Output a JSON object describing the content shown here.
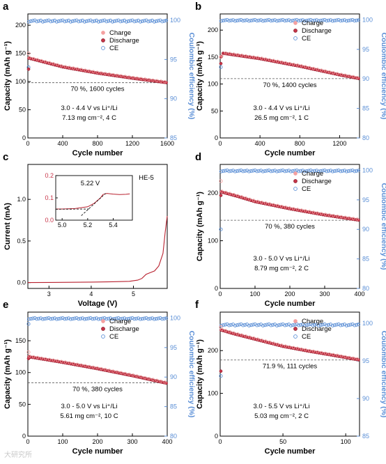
{
  "colors": {
    "charge": "#f4a0a0",
    "discharge": "#c8364a",
    "ce": "#5b8fd6",
    "cv_curve": "#b8202e",
    "axis": "#000000",
    "inset_axis": "#c8364a"
  },
  "watermark": "大研究所",
  "chart_data": [
    {
      "panel": "a",
      "type": "scatter",
      "xlabel": "Cycle number",
      "ylabel": "Capacity (mAh g⁻¹)",
      "ylabel_right": "Coulombic efficiency (%)",
      "xlim": [
        0,
        1600
      ],
      "ylim": [
        0,
        220
      ],
      "ylim_right": [
        85,
        100.8
      ],
      "xticks": [
        0,
        400,
        800,
        1200,
        1600
      ],
      "yticks": [
        0,
        50,
        100,
        150,
        200
      ],
      "yticks_right": [
        85,
        90,
        95,
        100
      ],
      "legend": [
        "Charge",
        "Discharge",
        "CE"
      ],
      "legend_position": "right-middle",
      "retention_label": "70 %, 1600 cycles",
      "retention_y": 98,
      "conditions": [
        "3.0 - 4.4 V vs Li⁺/Li",
        "7.13 mg cm⁻², 4 C"
      ],
      "charge_first": 150,
      "discharge_first": 122,
      "ce_first": 94,
      "discharge_curve": [
        [
          0,
          142
        ],
        [
          400,
          126
        ],
        [
          800,
          115
        ],
        [
          1200,
          106
        ],
        [
          1600,
          98
        ]
      ],
      "ce_value": 99.9
    },
    {
      "panel": "b",
      "type": "scatter",
      "xlabel": "Cycle number",
      "ylabel": "Capacity (mAh g⁻¹)",
      "ylabel_right": "Coulombic efficiency (%)",
      "xlim": [
        0,
        1400
      ],
      "ylim": [
        0,
        230
      ],
      "ylim_right": [
        80,
        101
      ],
      "xticks": [
        0,
        400,
        800,
        1200
      ],
      "yticks": [
        0,
        50,
        100,
        150,
        200
      ],
      "yticks_right": [
        80,
        85,
        90,
        95,
        100
      ],
      "legend": [
        "Charge",
        "Discharge",
        "CE"
      ],
      "legend_position": "right-top",
      "retention_label": "70 %, 1400 cycles",
      "retention_y": 110,
      "conditions": [
        "3.0 - 4.4 V vs Li⁺/Li",
        "26.5 mg cm⁻², 1 C"
      ],
      "charge_first": 150,
      "discharge_first": 138,
      "ce_first": 92,
      "discharge_curve": [
        [
          0,
          148
        ],
        [
          30,
          157
        ],
        [
          400,
          147
        ],
        [
          800,
          133
        ],
        [
          1200,
          117
        ],
        [
          1400,
          110
        ]
      ],
      "ce_value": 99.9
    },
    {
      "panel": "c",
      "type": "line",
      "xlabel": "Voltage (V)",
      "ylabel": "Current (mA)",
      "xlim": [
        2.5,
        5.8
      ],
      "ylim": [
        -0.07,
        1.42
      ],
      "xticks": [
        3,
        4,
        5
      ],
      "yticks": [
        0.0,
        0.5,
        1.0
      ],
      "label": "HE-5",
      "curve": [
        [
          2.5,
          0.0
        ],
        [
          3.0,
          0.002
        ],
        [
          3.5,
          0.004
        ],
        [
          4.0,
          0.006
        ],
        [
          4.5,
          0.01
        ],
        [
          4.9,
          0.015
        ],
        [
          5.1,
          0.03
        ],
        [
          5.2,
          0.05
        ],
        [
          5.3,
          0.1
        ],
        [
          5.4,
          0.12
        ],
        [
          5.5,
          0.14
        ],
        [
          5.6,
          0.2
        ],
        [
          5.7,
          0.35
        ],
        [
          5.75,
          0.6
        ],
        [
          5.8,
          0.8
        ]
      ],
      "inset": {
        "xlim": [
          4.95,
          5.55
        ],
        "ylim": [
          0.0,
          0.2
        ],
        "xticks": [
          5.0,
          5.2,
          5.4
        ],
        "yticks": [
          0.0,
          0.1,
          0.2
        ],
        "onset_label": "5.22 V",
        "curve": [
          [
            4.95,
            0.05
          ],
          [
            5.0,
            0.05
          ],
          [
            5.1,
            0.052
          ],
          [
            5.2,
            0.06
          ],
          [
            5.25,
            0.075
          ],
          [
            5.3,
            0.1
          ],
          [
            5.32,
            0.115
          ],
          [
            5.35,
            0.12
          ],
          [
            5.4,
            0.117
          ],
          [
            5.45,
            0.115
          ],
          [
            5.5,
            0.116
          ],
          [
            5.53,
            0.118
          ]
        ],
        "tangent_base": [
          [
            4.95,
            0.049
          ],
          [
            5.22,
            0.05
          ]
        ],
        "tangent_rise": [
          [
            5.15,
            0.02
          ],
          [
            5.34,
            0.12
          ]
        ]
      }
    },
    {
      "panel": "d",
      "type": "scatter",
      "xlabel": "Cycle number",
      "ylabel": "Capacity (mAh g⁻¹)",
      "ylabel_right": "Coulombic efficiency (%)",
      "xlim": [
        0,
        400
      ],
      "ylim": [
        0,
        260
      ],
      "ylim_right": [
        80,
        101
      ],
      "xticks": [
        0,
        100,
        200,
        300,
        400
      ],
      "yticks": [
        0,
        100,
        200
      ],
      "yticks_right": [
        80,
        85,
        90,
        95,
        100
      ],
      "legend": [
        "Charge",
        "Discharge",
        "CE"
      ],
      "legend_position": "right-top",
      "retention_label": "70 %, 380 cycles",
      "retention_y": 143,
      "conditions": [
        "3.0 - 5.0 V vs Li⁺/Li",
        "8.79 mg cm⁻², 2 C"
      ],
      "charge_first": 225,
      "discharge_first": 195,
      "ce_first": 90,
      "discharge_curve": [
        [
          0,
          203
        ],
        [
          50,
          193
        ],
        [
          100,
          182
        ],
        [
          200,
          167
        ],
        [
          300,
          154
        ],
        [
          400,
          143
        ]
      ],
      "ce_value": 99.9
    },
    {
      "panel": "e",
      "type": "scatter",
      "xlabel": "Cycle number",
      "ylabel": "Capacity (mAh g⁻¹)",
      "ylabel_right": "Coulombic efficiency (%)",
      "xlim": [
        0,
        400
      ],
      "ylim": [
        0,
        195
      ],
      "ylim_right": [
        80,
        101
      ],
      "xticks": [
        0,
        100,
        200,
        300,
        400
      ],
      "yticks": [
        0,
        50,
        100,
        150
      ],
      "yticks_right": [
        80,
        85,
        90,
        95,
        100
      ],
      "legend": [
        "Charge",
        "Discharge",
        "CE"
      ],
      "legend_position": "right-top",
      "retention_label": "70 %, 380 cycles",
      "retention_y": 84,
      "conditions": [
        "3.0 - 5.0 V vs Li⁺/Li",
        "5.61 mg cm⁻², 10 C"
      ],
      "charge_first": 132,
      "discharge_first": 122,
      "ce_first": 99,
      "discharge_curve": [
        [
          0,
          125
        ],
        [
          100,
          116
        ],
        [
          200,
          106
        ],
        [
          300,
          95
        ],
        [
          400,
          83
        ]
      ],
      "ce_value": 99.9
    },
    {
      "panel": "f",
      "type": "scatter",
      "xlabel": "Cycle number",
      "ylabel": "Capacity (mAh g⁻¹)",
      "ylabel_right": "Coulombic efficiency (%)",
      "xlim": [
        0,
        111
      ],
      "ylim": [
        0,
        290
      ],
      "ylim_right": [
        85,
        101.5
      ],
      "xticks": [
        0,
        50,
        100
      ],
      "yticks": [
        0,
        100,
        200
      ],
      "yticks_right": [
        85,
        90,
        95,
        100
      ],
      "legend": [
        "Charge",
        "Discharge",
        "CE"
      ],
      "legend_position": "right-top",
      "retention_label": "71.9 %, 111 cycles",
      "retention_y": 178,
      "conditions": [
        "3.0 - 5.5 V vs Li⁺/Li",
        "5.03 mg cm⁻², 2 C"
      ],
      "charge_first": 255,
      "discharge_first": 152,
      "ce_first": 93,
      "discharge_curve": [
        [
          1,
          248
        ],
        [
          10,
          240
        ],
        [
          30,
          225
        ],
        [
          50,
          210
        ],
        [
          70,
          199
        ],
        [
          90,
          189
        ],
        [
          111,
          178
        ]
      ],
      "ce_value": 99.8
    }
  ]
}
